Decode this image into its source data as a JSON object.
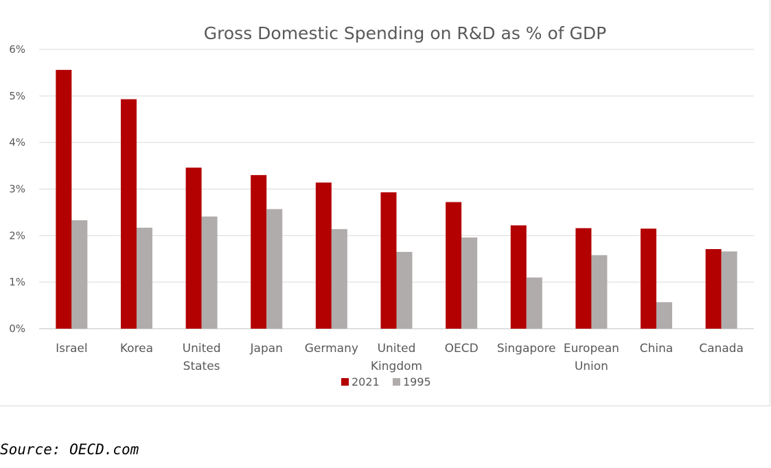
{
  "chart_data": {
    "type": "bar",
    "title": "Gross Domestic Spending on R&D as % of GDP",
    "categories": [
      [
        "Israel"
      ],
      [
        "Korea"
      ],
      [
        "United",
        "States"
      ],
      [
        "Japan"
      ],
      [
        "Germany"
      ],
      [
        "United",
        "Kingdom"
      ],
      [
        "OECD"
      ],
      [
        "Singapore"
      ],
      [
        "European",
        "Union"
      ],
      [
        "China"
      ],
      [
        "Canada"
      ]
    ],
    "series": [
      {
        "name": "2021",
        "color": "#b30000",
        "values": [
          5.56,
          4.93,
          3.46,
          3.3,
          3.14,
          2.93,
          2.72,
          2.22,
          2.16,
          2.15,
          1.71
        ]
      },
      {
        "name": "1995",
        "color": "#b0acab",
        "values": [
          2.33,
          2.17,
          2.41,
          2.57,
          2.14,
          1.65,
          1.96,
          1.1,
          1.58,
          0.57,
          1.66
        ]
      }
    ],
    "ylim": [
      0,
      6
    ],
    "yticks": [
      "0%",
      "1%",
      "2%",
      "3%",
      "4%",
      "5%",
      "6%"
    ],
    "grid": true,
    "legend_position": "bottom"
  },
  "source": "Source: OECD.com"
}
